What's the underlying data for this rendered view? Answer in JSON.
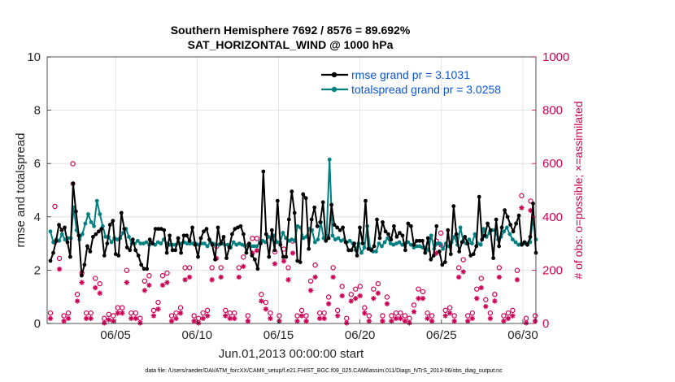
{
  "chart_data": {
    "type": "line",
    "title": "Southern Hemisphere 7692 / 8576 = 89.692%",
    "subtitle": "SAT_HORIZONTAL_WIND @ 1000 hPa",
    "xlabel": "Jun.01,2013 00:00:00 start",
    "ylabel": "rmse and totalspread",
    "ylabel_right": "# of obs: o=possible; ×=assimilated",
    "xlim": [
      0.8,
      30.8
    ],
    "ylim": [
      0,
      10
    ],
    "ylim_right": [
      0,
      1000
    ],
    "x_ticks": [
      {
        "value": 5,
        "label": "06/05"
      },
      {
        "value": 10,
        "label": "06/10"
      },
      {
        "value": 15,
        "label": "06/15"
      },
      {
        "value": 20,
        "label": "06/20"
      },
      {
        "value": 25,
        "label": "06/25"
      },
      {
        "value": 30,
        "label": "06/30"
      }
    ],
    "y_ticks": [
      0,
      2,
      4,
      6,
      8,
      10
    ],
    "y_ticks_right": [
      0,
      200,
      400,
      600,
      800,
      1000
    ],
    "legend_position": "top-right",
    "colors": {
      "rmse": "#000000",
      "totalspread": "#008080",
      "obs": "#cc0055"
    },
    "series": [
      {
        "name": "rmse grand pr = 3.1031",
        "axis": "left",
        "color": "#000000",
        "values": [
          2.35,
          2.65,
          3.1,
          3.7,
          3.5,
          3.6,
          3.05,
          2.5,
          5.25,
          4.2,
          3.3,
          1.8,
          2.2,
          2.9,
          2.7,
          3.25,
          3.35,
          3.45,
          3.55,
          2.55,
          3.0,
          3.7,
          3.85,
          2.6,
          2.55,
          4.15,
          3.55,
          2.85,
          2.75,
          3.15,
          2.75,
          2.55,
          2.2,
          2.05,
          2.05,
          3.15,
          3.0,
          3.55,
          3.55,
          3.55,
          3.5,
          2.65,
          3.3,
          2.75,
          2.75,
          3.2,
          2.65,
          3.3,
          3.3,
          3.1,
          3.6,
          2.95,
          2.5,
          3.2,
          3.45,
          3.55,
          3.15,
          2.95,
          2.4,
          3.6,
          3.0,
          3.25,
          2.45,
          2.85,
          3.35,
          3.55,
          3.6,
          3.65,
          3.35,
          2.65,
          3.0,
          2.55,
          2.4,
          2.05,
          3.0,
          5.7,
          3.35,
          2.5,
          3.5,
          2.75,
          4.6,
          2.95,
          2.5,
          2.5,
          3.9,
          4.95,
          4.15,
          2.35,
          2.3,
          4.85,
          4.7,
          2.8,
          3.9,
          4.35,
          3.65,
          3.8,
          4.55,
          3.1,
          3.2,
          4.45,
          3.7,
          3.6,
          3.5,
          3.6,
          3.05,
          2.75,
          2.75,
          3.0,
          2.55,
          3.6,
          3.0,
          4.6,
          2.8,
          2.75,
          2.9,
          3.9,
          3.2,
          3.8,
          3.45,
          3.35,
          3.15,
          3.65,
          3.25,
          3.4,
          3.3,
          2.75,
          3.75,
          3.65,
          2.95,
          3.1,
          3.1,
          3.1,
          2.65,
          3.2,
          2.4,
          2.55,
          3.65,
          2.7,
          2.2,
          2.3,
          3.5,
          2.6,
          4.4,
          3.35,
          2.7,
          3.05,
          3.25,
          3.0,
          2.55,
          2.6,
          2.9,
          4.75,
          3.15,
          3.3,
          3.75,
          3.5,
          2.45,
          3.9,
          2.9,
          3.6,
          4.25,
          4.0,
          3.7,
          3.45,
          3.75,
          4.05,
          2.95,
          3.05,
          2.95,
          3.25,
          4.5,
          2.65
        ],
        "gaps": [
          34,
          95,
          137
        ]
      },
      {
        "name": "totalspread grand pr = 3.0258",
        "axis": "left",
        "color": "#008080",
        "values": [
          3.45,
          3.05,
          3.15,
          3.1,
          3.35,
          3.15,
          3.2,
          3.2,
          4.35,
          3.5,
          3.15,
          3.35,
          3.75,
          4.1,
          3.8,
          3.65,
          4.6,
          4.1,
          3.65,
          3.25,
          3.25,
          3.05,
          3.2,
          3.15,
          3.2,
          3.4,
          3.55,
          3.25,
          3.0,
          3.0,
          3.1,
          3.0,
          3.0,
          3.05,
          2.95,
          3.0,
          2.95,
          3.05,
          3.0,
          3.15,
          3.0,
          2.95,
          2.95,
          2.95,
          3.0,
          3.0,
          3.05,
          3.0,
          3.0,
          3.0,
          3.0,
          2.95,
          3.0,
          3.0,
          2.9,
          3.05,
          3.0,
          2.95,
          2.95,
          3.0,
          2.95,
          2.95,
          2.85,
          3.05,
          2.95,
          3.0,
          2.95,
          2.9,
          2.95,
          2.9,
          2.9,
          2.9,
          3.05,
          3.1,
          3.05,
          3.25,
          3.15,
          3.3,
          3.05,
          3.05,
          3.4,
          3.2,
          3.1,
          3.15,
          3.1,
          3.65,
          3.6,
          3.2,
          3.25,
          3.55,
          3.5,
          3.05,
          3.15,
          3.8,
          3.2,
          3.3,
          6.15,
          3.3,
          3.15,
          3.2,
          3.1,
          3.15,
          3.05,
          3.1,
          3.0,
          2.75,
          3.0,
          2.65,
          2.85,
          3.65,
          2.8,
          2.7,
          2.7,
          3.0,
          2.9,
          3.05,
          3.2,
          3.0,
          2.95,
          3.0,
          3.05,
          2.95,
          3.0,
          3.05,
          2.95,
          2.85,
          2.9,
          2.9,
          2.85,
          2.85,
          2.75,
          3.3,
          2.8,
          3.0,
          3.0,
          2.8,
          3.0,
          2.9,
          3.05,
          3.25,
          2.95,
          3.6,
          3.1,
          3.0,
          3.15,
          3.0,
          3.35,
          3.0,
          2.95,
          3.55,
          3.25,
          3.4,
          3.5,
          3.5,
          3.15,
          3.25,
          3.45,
          3.6,
          3.35,
          3.15,
          3.05,
          2.95,
          3.0,
          3.0,
          3.0,
          3.05,
          3.95,
          3.15
        ],
        "gaps": [
          34,
          95,
          137
        ]
      },
      {
        "name": "obs possible (o)",
        "axis": "right",
        "color": "#cc0055",
        "values": [
          30,
          430,
          235,
          20,
          30,
          590,
          100,
          180,
          30,
          30,
          160,
          140,
          10,
          25,
          20,
          50,
          50,
          190,
          30,
          30,
          10,
          150,
          170,
          40,
          70,
          170,
          180,
          20,
          30,
          50,
          200,
          200,
          20,
          10,
          30,
          40,
          200,
          280,
          200,
          40,
          30,
          30,
          200,
          240,
          20,
          310,
          310,
          100,
          70,
          30,
          260,
          20,
          270,
          200,
          300,
          20,
          40,
          20,
          150,
          210,
          30,
          30,
          90,
          200,
          40,
          130,
          10,
          100,
          120,
          130,
          50,
          20,
          120,
          140,
          20,
          90,
          20,
          30,
          30,
          20,
          10,
          60,
          120,
          110,
          30,
          20,
          300,
          330,
          40,
          50,
          20,
          200,
          230,
          20,
          30,
          120,
          160,
          80,
          30,
          100,
          200,
          20,
          30,
          40,
          190,
          470,
          10,
          450,
          20
        ],
        "x_positions": "evenly spaced across the date range"
      },
      {
        "name": "obs assimilated (×)",
        "axis": "right",
        "color": "#cc0055",
        "values": [
          25,
          310,
          210,
          15,
          25,
          530,
          90,
          160,
          25,
          25,
          140,
          120,
          8,
          20,
          15,
          45,
          45,
          160,
          25,
          25,
          8,
          130,
          150,
          35,
          60,
          150,
          160,
          15,
          25,
          45,
          170,
          180,
          15,
          8,
          25,
          35,
          170,
          250,
          180,
          35,
          25,
          25,
          180,
          220,
          15,
          270,
          280,
          90,
          60,
          25,
          230,
          15,
          240,
          170,
          270,
          15,
          35,
          15,
          130,
          180,
          25,
          25,
          80,
          180,
          35,
          110,
          8,
          90,
          100,
          110,
          45,
          15,
          100,
          120,
          15,
          80,
          15,
          25,
          25,
          15,
          8,
          50,
          100,
          100,
          25,
          15,
          270,
          300,
          35,
          45,
          15,
          180,
          200,
          15,
          25,
          100,
          140,
          70,
          25,
          90,
          180,
          15,
          25,
          35,
          170,
          440,
          8,
          430,
          15
        ]
      }
    ],
    "footer": "data file: /Users/raeder/DAI/ATM_forcXX/CAM6_setup/f.e21.FHIST_BGC.f09_025.CAM6assim.011/Diags_NTrS_2013-06/obs_diag_output.nc"
  }
}
